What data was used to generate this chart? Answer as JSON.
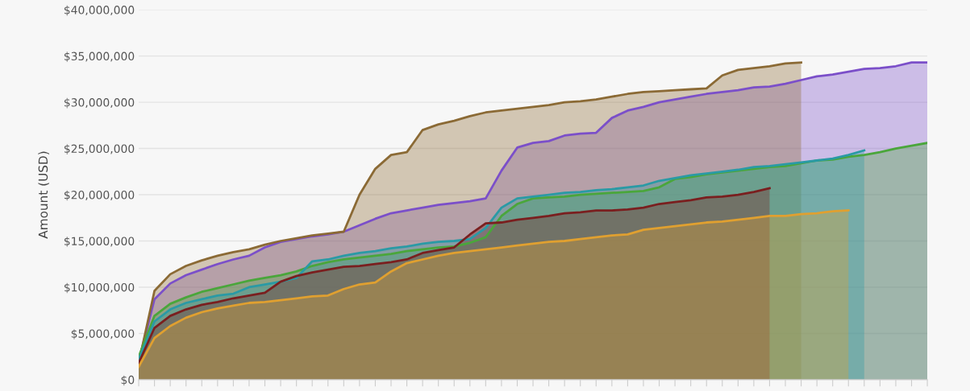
{
  "chart_data": {
    "type": "area",
    "ylabel": "Amount (USD)",
    "categories": [
      null,
      null,
      null,
      null,
      null,
      null,
      null,
      null,
      null,
      null,
      null,
      null,
      null,
      null,
      null,
      null,
      null,
      null,
      null,
      null,
      null,
      null,
      null,
      null,
      null,
      null,
      null,
      null,
      null,
      null,
      null,
      null,
      null,
      null,
      null,
      null,
      null,
      null,
      null,
      null,
      null,
      null,
      null,
      null,
      null,
      null,
      null,
      null,
      null,
      null,
      null
    ],
    "series": [
      {
        "color": "#7b4fc9",
        "values": [
          2000000.0,
          8700000.0,
          10400000.0,
          11300000.0,
          11900000.0,
          12500000.0,
          13000000.0,
          13400000.0,
          14300000.0,
          14900000.0,
          15200000.0,
          15500000.0,
          15700000.0,
          16000000.0,
          16700000.0,
          17400000.0,
          18000000.0,
          18300000.0,
          18600000.0,
          18900000.0,
          19100000.0,
          19300000.0,
          19600000.0,
          22600000.0,
          25100000.0,
          25600000.0,
          25800000.0,
          26400000.0,
          26600000.0,
          26700000.0,
          28300000.0,
          29100000.0,
          29500000.0,
          30000000.0,
          30300000.0,
          30600000.0,
          30900000.0,
          31100000.0,
          31300000.0,
          31600000.0,
          31700000.0,
          32000000.0,
          32400000.0,
          32800000.0,
          33000000.0,
          33300000.0,
          33600000.0,
          33700000.0,
          33900000.0,
          34300000.0,
          34300000.0
        ]
      },
      {
        "color": "#8b6a35",
        "values": [
          1800000.0,
          9600000.0,
          11400000.0,
          12300000.0,
          12900000.0,
          13400000.0,
          13800000.0,
          14100000.0,
          14600000.0,
          15000000.0,
          15300000.0,
          15600000.0,
          15800000.0,
          16000000.0,
          20000000.0,
          22800000.0,
          24300000.0,
          24600000.0,
          27000000.0,
          27600000.0,
          28000000.0,
          28500000.0,
          28900000.0,
          29100000.0,
          29300000.0,
          29500000.0,
          29700000.0,
          30000000.0,
          30100000.0,
          30300000.0,
          30600000.0,
          30900000.0,
          31100000.0,
          31200000.0,
          31300000.0,
          31400000.0,
          31500000.0,
          32900000.0,
          33500000.0,
          33700000.0,
          33900000.0,
          34200000.0,
          34300000.0,
          null,
          null,
          null,
          null,
          null,
          null,
          null,
          null
        ]
      },
      {
        "color": "#4aa63b",
        "values": [
          2500000.0,
          6900000.0,
          8200000.0,
          8900000.0,
          9500000.0,
          9900000.0,
          10300000.0,
          10700000.0,
          11000000.0,
          11300000.0,
          11700000.0,
          12300000.0,
          12700000.0,
          13000000.0,
          13200000.0,
          13400000.0,
          13600000.0,
          13900000.0,
          14100000.0,
          14300000.0,
          14400000.0,
          14800000.0,
          15400000.0,
          17700000.0,
          19000000.0,
          19600000.0,
          19700000.0,
          19800000.0,
          20000000.0,
          20100000.0,
          20200000.0,
          20300000.0,
          20400000.0,
          20800000.0,
          21700000.0,
          21900000.0,
          22200000.0,
          22400000.0,
          22600000.0,
          22800000.0,
          23000000.0,
          23100000.0,
          23400000.0,
          23700000.0,
          23800000.0,
          24100000.0,
          24300000.0,
          24600000.0,
          25000000.0,
          25300000.0,
          25600000.0
        ]
      },
      {
        "color": "#2a9aa5",
        "values": [
          2200000.0,
          6300000.0,
          7600000.0,
          8300000.0,
          8700000.0,
          9100000.0,
          9300000.0,
          10000000.0,
          10300000.0,
          10600000.0,
          11000000.0,
          12800000.0,
          13000000.0,
          13400000.0,
          13700000.0,
          13900000.0,
          14200000.0,
          14400000.0,
          14700000.0,
          14900000.0,
          15000000.0,
          15200000.0,
          16400000.0,
          18600000.0,
          19600000.0,
          19800000.0,
          20000000.0,
          20200000.0,
          20300000.0,
          20500000.0,
          20600000.0,
          20800000.0,
          21000000.0,
          21500000.0,
          21800000.0,
          22100000.0,
          22300000.0,
          22500000.0,
          22700000.0,
          23000000.0,
          23100000.0,
          23300000.0,
          23500000.0,
          23700000.0,
          23900000.0,
          24300000.0,
          24800000.0,
          null,
          null,
          null,
          null
        ]
      },
      {
        "color": "#7a1f1f",
        "values": [
          1800000.0,
          5600000.0,
          6900000.0,
          7600000.0,
          8100000.0,
          8400000.0,
          8800000.0,
          9100000.0,
          9400000.0,
          10600000.0,
          11200000.0,
          11600000.0,
          11900000.0,
          12200000.0,
          12300000.0,
          12500000.0,
          12700000.0,
          13000000.0,
          13700000.0,
          14000000.0,
          14300000.0,
          15700000.0,
          16900000.0,
          17000000.0,
          17300000.0,
          17500000.0,
          17700000.0,
          18000000.0,
          18100000.0,
          18300000.0,
          18300000.0,
          18400000.0,
          18600000.0,
          19000000.0,
          19200000.0,
          19400000.0,
          19700000.0,
          19800000.0,
          20000000.0,
          20300000.0,
          20700000.0,
          null,
          null,
          null,
          null,
          null,
          null,
          null,
          null,
          null,
          null
        ]
      },
      {
        "color": "#e0a030",
        "values": [
          1400000.0,
          4500000.0,
          5800000.0,
          6700000.0,
          7300000.0,
          7700000.0,
          8000000.0,
          8300000.0,
          8400000.0,
          8600000.0,
          8800000.0,
          9000000.0,
          9100000.0,
          9800000.0,
          10300000.0,
          10500000.0,
          11700000.0,
          12600000.0,
          13000000.0,
          13400000.0,
          13700000.0,
          13900000.0,
          14100000.0,
          14300000.0,
          14500000.0,
          14700000.0,
          14900000.0,
          15000000.0,
          15200000.0,
          15400000.0,
          15600000.0,
          15700000.0,
          16200000.0,
          16400000.0,
          16600000.0,
          16800000.0,
          17000000.0,
          17100000.0,
          17300000.0,
          17500000.0,
          17700000.0,
          17700000.0,
          17900000.0,
          18000000.0,
          18200000.0,
          18300000.0,
          null,
          null,
          null,
          null,
          null
        ]
      }
    ],
    "ylim": [
      0,
      40000000
    ],
    "yticks": [
      {
        "value": 0,
        "label": "$0"
      },
      {
        "value": 5000000,
        "label": "$5,000,000"
      },
      {
        "value": 10000000,
        "label": "$10,000,000"
      },
      {
        "value": 15000000,
        "label": "$15,000,000"
      },
      {
        "value": 20000000,
        "label": "$20,000,000"
      },
      {
        "value": 25000000,
        "label": "$25,000,000"
      },
      {
        "value": 30000000,
        "label": "$30,000,000"
      },
      {
        "value": 35000000,
        "label": "$35,000,000"
      },
      {
        "value": 40000000,
        "label": "$40,000,000"
      }
    ],
    "grid": "y",
    "tick_labels": "y",
    "legend": false
  }
}
